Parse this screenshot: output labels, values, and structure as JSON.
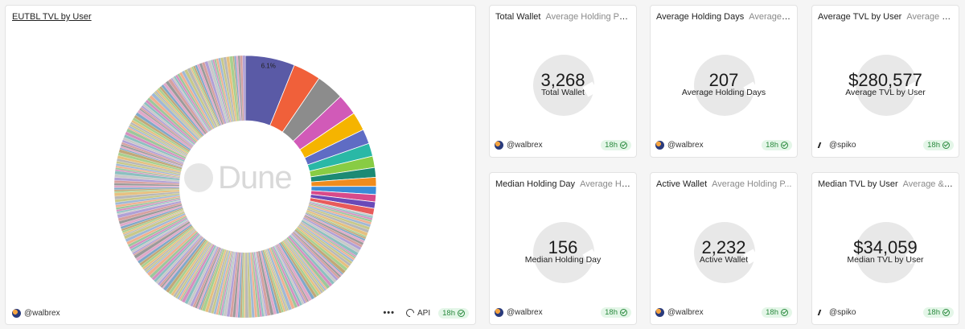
{
  "main_chart": {
    "title": "EUTBL TVL by User",
    "watermark": "Dune",
    "author": "@walbrex",
    "api_label": "API",
    "more_label": "•••",
    "age": "18h",
    "chart_data": {
      "type": "pie",
      "variant": "donut",
      "title": "EUTBL TVL by User",
      "labeled_slice": "6.1%",
      "slices": [
        {
          "share": 6.1,
          "color": "#5a5aa6",
          "label": "6.1%"
        },
        {
          "share": 3.4,
          "color": "#f0603a"
        },
        {
          "share": 3.4,
          "color": "#8c8c8c"
        },
        {
          "share": 2.6,
          "color": "#d15ab8"
        },
        {
          "share": 2.3,
          "color": "#f5b400"
        },
        {
          "share": 1.8,
          "color": "#5f6cc4"
        },
        {
          "share": 1.6,
          "color": "#2ab8a6"
        },
        {
          "share": 1.4,
          "color": "#88cc44"
        },
        {
          "share": 1.2,
          "color": "#1c8a74"
        },
        {
          "share": 1.1,
          "color": "#f08c1e"
        },
        {
          "share": 1.0,
          "color": "#3a8cd8"
        },
        {
          "share": 0.9,
          "color": "#d84a8a"
        },
        {
          "share": 0.8,
          "color": "#6a4ab8"
        },
        {
          "share": 0.8,
          "color": "#e85a5a"
        }
      ],
      "tail_share": 71.6,
      "tail_palette": [
        "#c9c9c9",
        "#b8b8b8",
        "#d6a0a0",
        "#a0b8d6",
        "#e0a8c8",
        "#9cc79c",
        "#c2a878",
        "#8cc0c0",
        "#e6c080",
        "#b0a0d6",
        "#c8c88a",
        "#9a9a9a",
        "#f0b090",
        "#80a8c8",
        "#d490c0",
        "#a8d090"
      ]
    }
  },
  "counters": [
    {
      "title": "Total Wallet",
      "subtitle": "Average Holding Period...",
      "value": "3,268",
      "label": "Total Wallet",
      "author": "@walbrex",
      "author_type": "walbrex",
      "age": "18h"
    },
    {
      "title": "Average Holding Days",
      "subtitle": "Average H...",
      "value": "207",
      "label": "Average Holding Days",
      "author": "@walbrex",
      "author_type": "walbrex",
      "age": "18h"
    },
    {
      "title": "Average TVL by User",
      "subtitle": "Average & ...",
      "value": "$280,577",
      "label": "Average TVL by User",
      "author": "@spiko",
      "author_type": "spiko",
      "age": "18h"
    },
    {
      "title": "Median Holding Day",
      "subtitle": "Average Hol...",
      "value": "156",
      "label": "Median Holding Day",
      "author": "@walbrex",
      "author_type": "walbrex",
      "age": "18h"
    },
    {
      "title": "Active Wallet",
      "subtitle": "Average Holding P...",
      "value": "2,232",
      "label": "Active Wallet",
      "author": "@walbrex",
      "author_type": "walbrex",
      "age": "18h"
    },
    {
      "title": "Median TVL by User",
      "subtitle": "Average & M...",
      "value": "$34,059",
      "label": "Median TVL by User",
      "author": "@spiko",
      "author_type": "spiko",
      "age": "18h"
    }
  ]
}
